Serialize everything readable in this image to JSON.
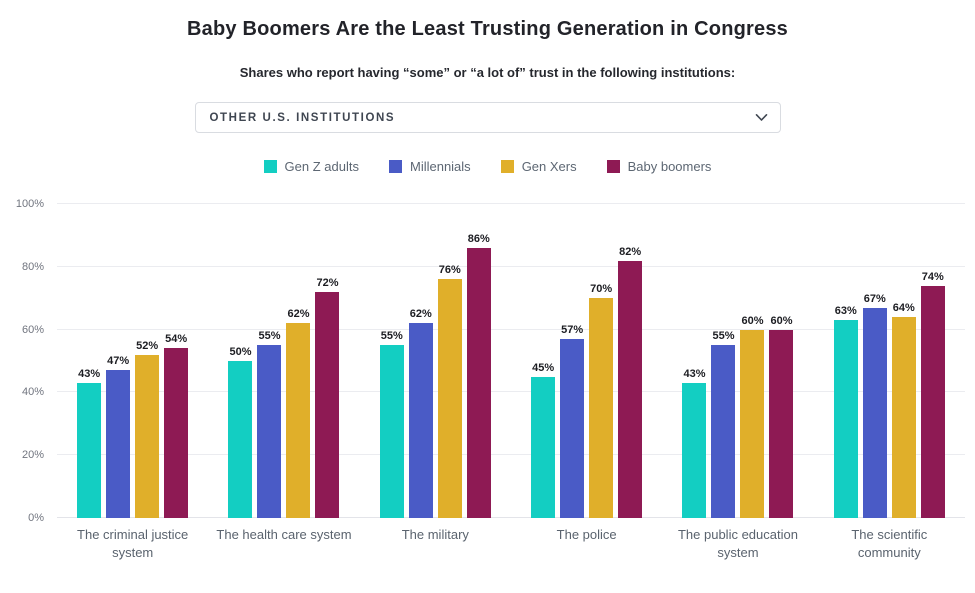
{
  "header": {
    "title": "Baby Boomers Are the Least Trusting Generation in Congress",
    "subtitle": "Shares who report having “some” or “a lot of” trust in the following institutions:"
  },
  "dropdown": {
    "selected": "OTHER U.S. INSTITUTIONS",
    "chevron_icon": "chevron-down"
  },
  "chart_data": {
    "type": "bar",
    "title": "Baby Boomers Are the Least Trusting Generation in Congress",
    "subtitle": "Shares who report having “some” or “a lot of” trust in the following institutions:",
    "categories": [
      "The criminal justice system",
      "The health care system",
      "The military",
      "The police",
      "The public education system",
      "The scientific community"
    ],
    "series": [
      {
        "name": "Gen Z adults",
        "color": "#13CEC2",
        "values": [
          43,
          50,
          55,
          45,
          43,
          63
        ]
      },
      {
        "name": "Millennials",
        "color": "#4A5BC6",
        "values": [
          47,
          55,
          62,
          57,
          55,
          67
        ]
      },
      {
        "name": "Gen Xers",
        "color": "#E0AF2A",
        "values": [
          52,
          62,
          76,
          70,
          60,
          64
        ]
      },
      {
        "name": "Baby boomers",
        "color": "#8E1A54",
        "values": [
          54,
          72,
          86,
          82,
          60,
          74
        ]
      }
    ],
    "xlabel": "",
    "ylabel": "",
    "ylim": [
      0,
      100
    ],
    "yticks": [
      "0%",
      "20%",
      "40%",
      "60%",
      "80%",
      "100%"
    ],
    "grid": true,
    "legend_position": "top",
    "value_label_suffix": "%"
  }
}
